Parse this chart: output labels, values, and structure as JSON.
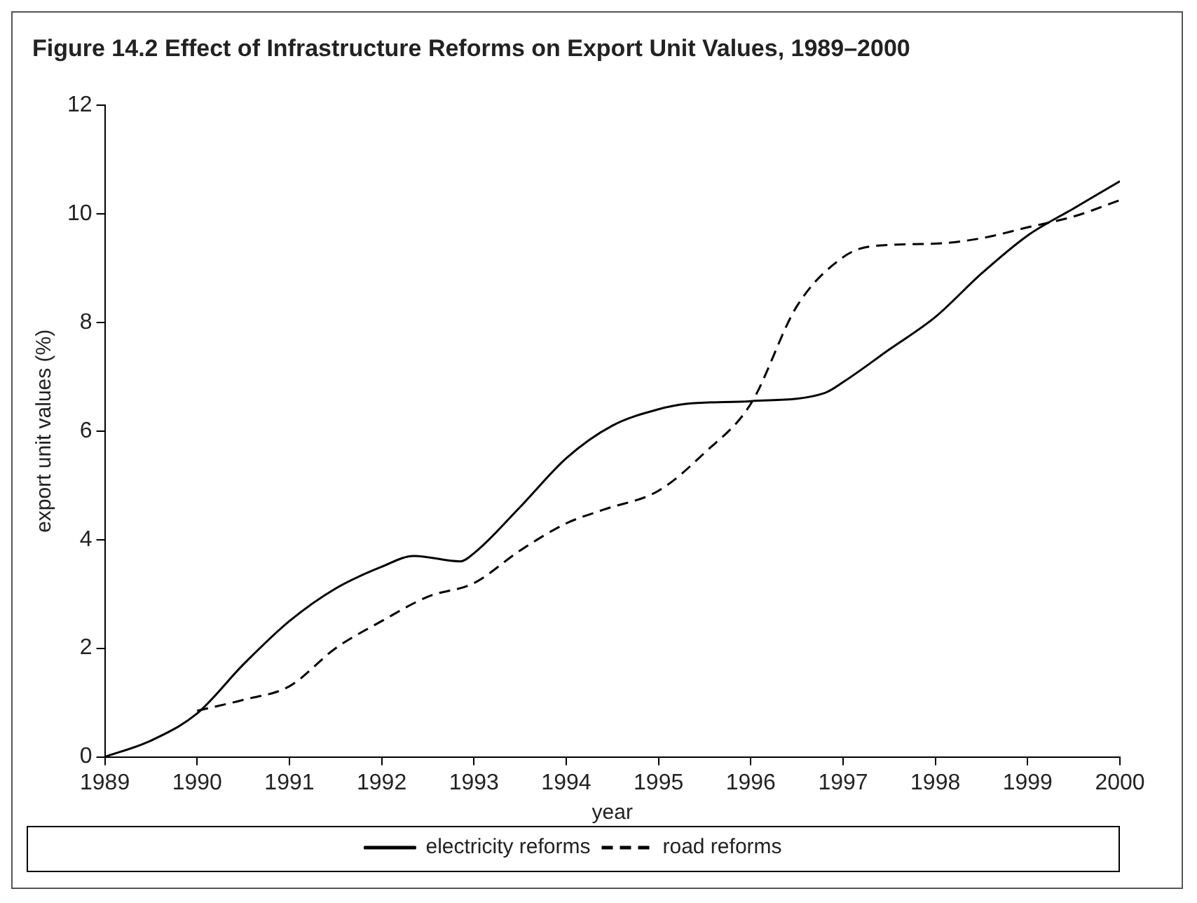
{
  "chart_data": {
    "type": "line",
    "title": "Figure 14.2  Effect of Infrastructure Reforms on Export Unit Values, 1989–2000",
    "xlabel": "year",
    "ylabel": "export unit values (%)",
    "xlim": [
      1989,
      2000
    ],
    "xticks": [
      1989,
      1990,
      1991,
      1992,
      1993,
      1994,
      1995,
      1996,
      1997,
      1998,
      1999,
      2000
    ],
    "ylim": [
      0,
      12
    ],
    "yticks": [
      0,
      2,
      4,
      6,
      8,
      10,
      12
    ],
    "grid": false,
    "legend": "bottom",
    "marker": "none",
    "series": [
      {
        "name": "electricity reforms",
        "color": "#000000",
        "line_style": "solid",
        "x": [
          1989,
          1989.5,
          1990,
          1990.5,
          1991,
          1991.5,
          1992,
          1992.35,
          1992.85,
          1993,
          1993.5,
          1994,
          1994.5,
          1995,
          1995.3,
          1996,
          1996.8,
          1997,
          1997.5,
          1998,
          1998.5,
          1999,
          1999.5,
          2000
        ],
        "values": [
          0,
          0.3,
          0.8,
          1.7,
          2.5,
          3.1,
          3.5,
          3.7,
          3.6,
          3.75,
          4.6,
          5.5,
          6.1,
          6.4,
          6.5,
          6.55,
          6.7,
          6.9,
          7.5,
          8.1,
          8.9,
          9.6,
          10.1,
          10.6
        ]
      },
      {
        "name": "road reforms",
        "color": "#000000",
        "line_style": "dashed",
        "x": [
          1990,
          1990.5,
          1991,
          1991.5,
          1992,
          1992.5,
          1993,
          1993.5,
          1994,
          1994.4,
          1995,
          1995.5,
          1996,
          1996.5,
          1997,
          1997.3,
          1998,
          1998.5,
          1999,
          1999.5,
          2000
        ],
        "values": [
          0.85,
          1.05,
          1.3,
          2.0,
          2.5,
          2.95,
          3.2,
          3.8,
          4.3,
          4.55,
          4.9,
          5.6,
          6.5,
          8.3,
          9.2,
          9.4,
          9.45,
          9.55,
          9.75,
          9.95,
          10.25
        ]
      }
    ]
  }
}
